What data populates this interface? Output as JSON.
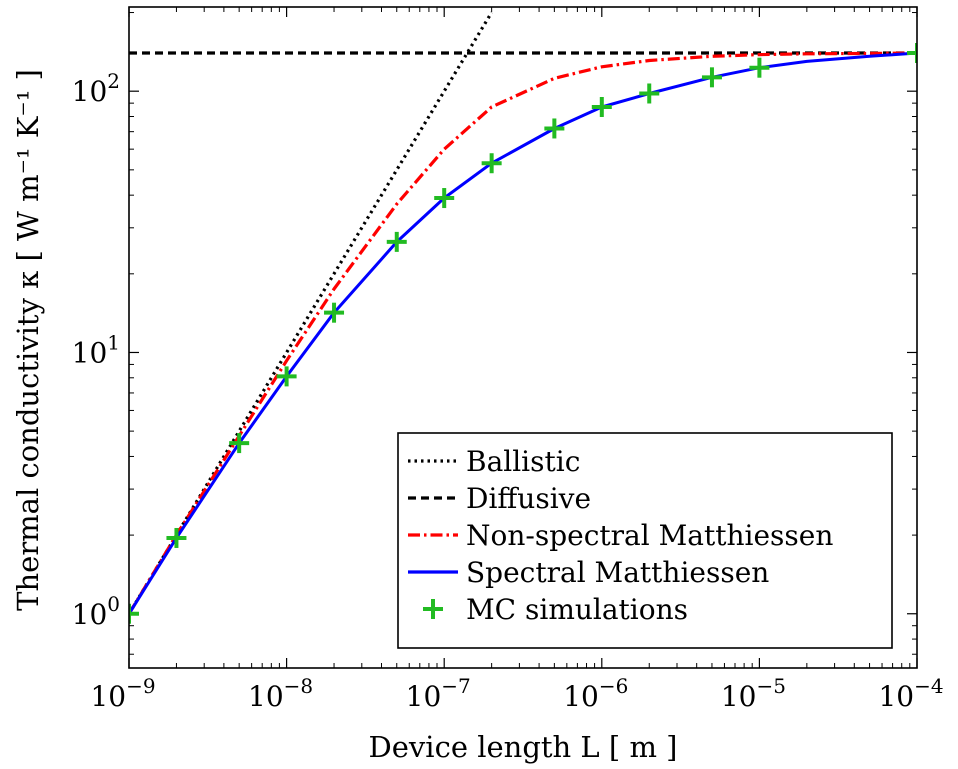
{
  "chart_data": {
    "type": "line",
    "x_scale": "log",
    "y_scale": "log",
    "xlim": [
      1e-09,
      0.0001
    ],
    "ylim": [
      0.62,
      210
    ],
    "xlabel": "Device length L [ m ]",
    "ylabel": "Thermal conductivity κ [ W m⁻¹ K⁻¹ ]",
    "xticks": [
      {
        "value": 1e-09,
        "base": "10",
        "exp": "−9"
      },
      {
        "value": 1e-08,
        "base": "10",
        "exp": "−8"
      },
      {
        "value": 1e-07,
        "base": "10",
        "exp": "−7"
      },
      {
        "value": 1e-06,
        "base": "10",
        "exp": "−6"
      },
      {
        "value": 1e-05,
        "base": "10",
        "exp": "−5"
      },
      {
        "value": 0.0001,
        "base": "10",
        "exp": "−4"
      }
    ],
    "yticks": [
      {
        "value": 1,
        "base": "10",
        "exp": "0"
      },
      {
        "value": 10,
        "base": "10",
        "exp": "1"
      },
      {
        "value": 100,
        "base": "10",
        "exp": "2"
      }
    ],
    "legend_position": "bottom-right",
    "series": [
      {
        "name": "Ballistic",
        "style": "dotted",
        "color": "#000000",
        "x": [
          1e-09,
          2e-09,
          5e-09,
          1e-08,
          2e-08,
          5e-08,
          1e-07,
          2e-07
        ],
        "y": [
          1.0,
          2.0,
          5.0,
          10.0,
          20.0,
          50.0,
          100.0,
          200.0
        ]
      },
      {
        "name": "Diffusive",
        "style": "dashed",
        "color": "#000000",
        "x": [
          1e-09,
          0.0001
        ],
        "y": [
          140,
          140
        ]
      },
      {
        "name": "Non-spectral Matthiessen",
        "style": "dashdot",
        "color": "#ff0000",
        "x": [
          1e-09,
          2e-09,
          5e-09,
          1e-08,
          2e-08,
          5e-08,
          1e-07,
          2e-07,
          5e-07,
          1e-06,
          2e-06,
          5e-06,
          1e-05,
          2e-05,
          5e-05,
          0.0001
        ],
        "y": [
          1.0,
          2.0,
          4.8,
          9.3,
          17.5,
          37.0,
          60.0,
          87.0,
          112.0,
          124.0,
          131.0,
          136.0,
          138.0,
          139.0,
          139.5,
          140.0
        ]
      },
      {
        "name": "Spectral Matthiessen",
        "style": "solid",
        "color": "#0000ff",
        "x": [
          1e-09,
          2e-09,
          5e-09,
          1e-08,
          2e-08,
          5e-08,
          1e-07,
          2e-07,
          5e-07,
          1e-06,
          2e-06,
          5e-06,
          1e-05,
          2e-05,
          5e-05,
          0.0001
        ],
        "y": [
          1.0,
          1.95,
          4.5,
          8.1,
          14.2,
          26.5,
          39.0,
          53.0,
          72.0,
          87.0,
          98.0,
          113.0,
          123.0,
          130.0,
          136.0,
          140.0
        ]
      },
      {
        "name": "MC simulations",
        "style": "markers",
        "marker": "plus",
        "color": "#22bb22",
        "x": [
          1e-09,
          2e-09,
          5e-09,
          1e-08,
          2e-08,
          5e-08,
          1e-07,
          2e-07,
          5e-07,
          1e-06,
          2e-06,
          5e-06,
          1e-05,
          0.0001
        ],
        "y": [
          1.0,
          1.95,
          4.5,
          8.1,
          14.2,
          26.5,
          39.0,
          53.0,
          72.0,
          87.0,
          98.0,
          113.0,
          123.0,
          140.0
        ]
      }
    ]
  }
}
